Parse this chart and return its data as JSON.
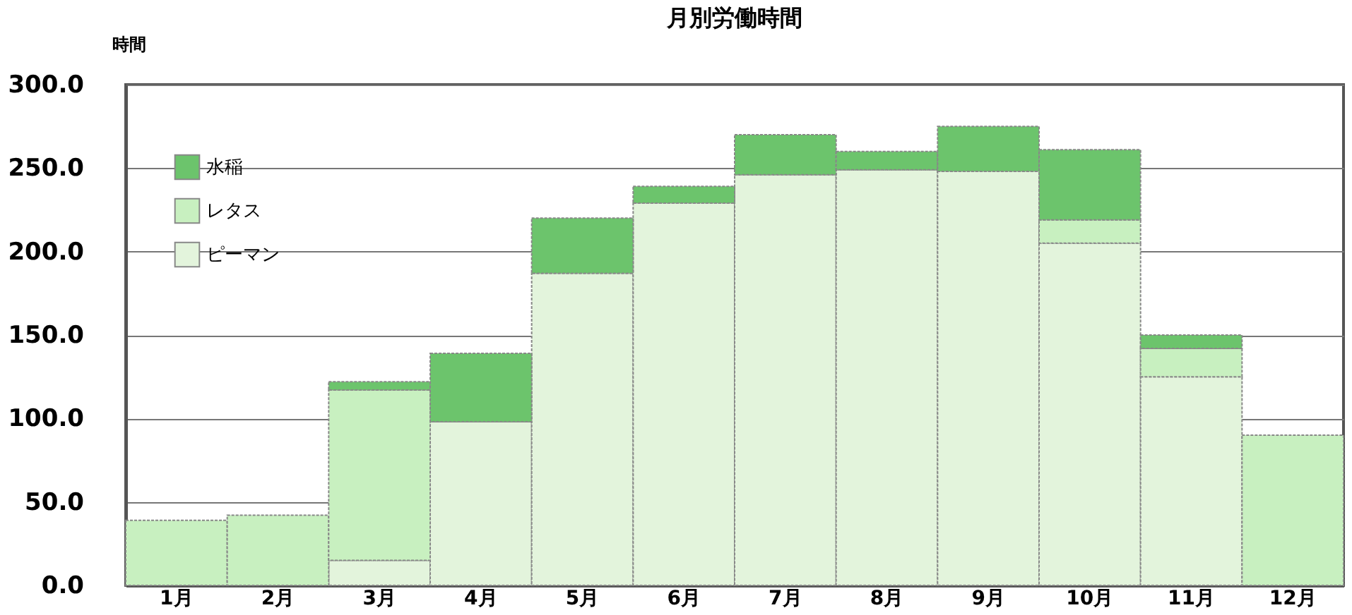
{
  "chart_data": {
    "type": "bar",
    "title": "月別労働時間",
    "ylabel": "時間",
    "stacked": true,
    "categories": [
      "1月",
      "2月",
      "3月",
      "4月",
      "5月",
      "6月",
      "7月",
      "8月",
      "9月",
      "10月",
      "11月",
      "12月"
    ],
    "series": [
      {
        "name": "ピーマン",
        "color": "#e3f4dc",
        "values": [
          null,
          null,
          15,
          98,
          187,
          229,
          246,
          249,
          248,
          205,
          125,
          null
        ]
      },
      {
        "name": "レタス",
        "color": "#c8f0c0",
        "values": [
          39,
          42,
          102,
          null,
          null,
          null,
          null,
          null,
          null,
          14,
          17,
          90
        ]
      },
      {
        "name": "水稲",
        "color": "#6cc46c",
        "values": [
          null,
          null,
          5,
          41,
          33,
          10,
          24,
          11,
          27,
          42,
          8,
          null
        ]
      }
    ],
    "ylim": [
      0,
      300
    ],
    "yticks": [
      {
        "value": 0,
        "label": "0.0"
      },
      {
        "value": 50,
        "label": "50.0"
      },
      {
        "value": 100,
        "label": "100.0"
      },
      {
        "value": 150,
        "label": "150.0"
      },
      {
        "value": 200,
        "label": "200.0"
      },
      {
        "value": 250,
        "label": "250.0"
      },
      {
        "value": 300,
        "label": "300.0"
      }
    ],
    "grid": "y",
    "legend": "top left"
  }
}
